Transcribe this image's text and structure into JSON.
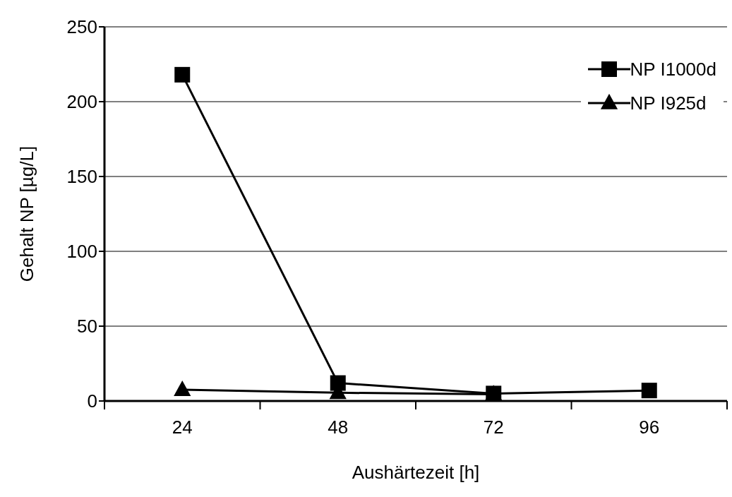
{
  "chart_data": {
    "type": "line",
    "xlabel": "Aushärtezeit [h]",
    "ylabel": "Gehalt NP [µg/L]",
    "categories": [
      "24",
      "48",
      "72",
      "96"
    ],
    "series": [
      {
        "name": "NP I1000d",
        "color": "#000000",
        "marker": "square",
        "values": [
          218,
          12,
          5,
          7
        ]
      },
      {
        "name": "NP I925d",
        "color": "#000000",
        "marker": "triangle",
        "values": [
          7.5,
          5.5,
          4.5,
          null
        ]
      }
    ],
    "ylim": [
      0,
      250
    ],
    "yticks": [
      0,
      50,
      100,
      150,
      200,
      250
    ],
    "grid": "y",
    "legend": "top right",
    "line_style": "solid"
  }
}
